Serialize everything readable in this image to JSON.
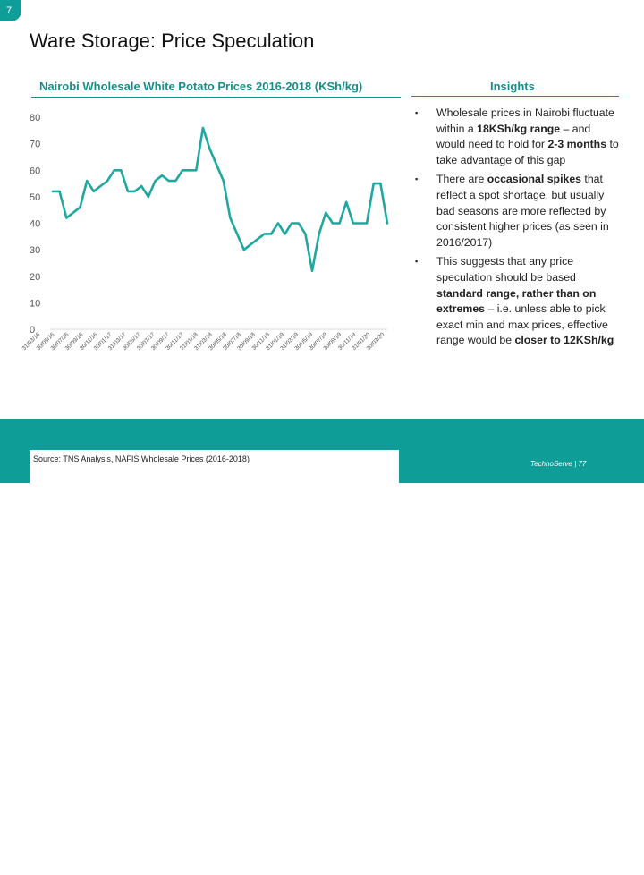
{
  "slide": {
    "number": "7",
    "title": "Ware Storage: Price Speculation",
    "chart_title": "Nairobi Wholesale White Potato Prices 2016-2018 (KSh/kg)",
    "insights_title": "Insights",
    "source": "Source: TNS Analysis, NAFIS Wholesale Prices (2016-2018)",
    "brand": "TechnoServe | 77"
  },
  "insights": [
    {
      "text": [
        "Wholesale prices in Nairobi fluctuate within a ",
        "18KSh/kg range",
        " – and would need to hold for ",
        "2-3 months",
        " to take advantage of this gap"
      ]
    },
    {
      "text": [
        "There are ",
        "occasional spikes",
        " that reflect a spot shortage, but usually bad seasons are more reflected by consistent higher prices (as seen in 2016/2017)"
      ]
    },
    {
      "text": [
        "This suggests that any price speculation should be based ",
        "standard range, rather than on extremes",
        " – i.e. unless able to pick exact min and max prices, effective range would be ",
        "closer to 12KSh/kg"
      ]
    }
  ],
  "colors": {
    "accent": "#0f9e97",
    "line": "#1fa89f",
    "axis_text": "#555555"
  },
  "chart_data": {
    "type": "line",
    "title": "Nairobi Wholesale White Potato Prices 2016-2018 (KSh/kg)",
    "ylim": [
      0,
      80
    ],
    "yticks": [
      0,
      10,
      20,
      30,
      40,
      50,
      60,
      70,
      80
    ],
    "grid": false,
    "xtick_labels": [
      "31/03/16",
      "30/05/16",
      "30/07/16",
      "30/09/16",
      "30/11/16",
      "30/01/17",
      "31/03/17",
      "30/05/17",
      "30/07/17",
      "30/09/17",
      "30/11/17",
      "31/01/18",
      "31/03/18",
      "30/05/18",
      "30/07/18",
      "30/09/18",
      "30/11/18",
      "31/01/19",
      "31/03/19",
      "30/05/19",
      "30/07/19",
      "30/09/19",
      "30/11/19",
      "31/01/20",
      "30/03/20"
    ],
    "series": [
      {
        "values": [
          52,
          52,
          42,
          44,
          46,
          56,
          52,
          54,
          56,
          60,
          60,
          52,
          52,
          54,
          50,
          56,
          58,
          56,
          56,
          60,
          60,
          60,
          76,
          68,
          62,
          56,
          42,
          36,
          30,
          32,
          34,
          36,
          36,
          40,
          36,
          40,
          40,
          36,
          22,
          36,
          44,
          40,
          40,
          48,
          40,
          40,
          40,
          55,
          55,
          40
        ]
      }
    ]
  }
}
